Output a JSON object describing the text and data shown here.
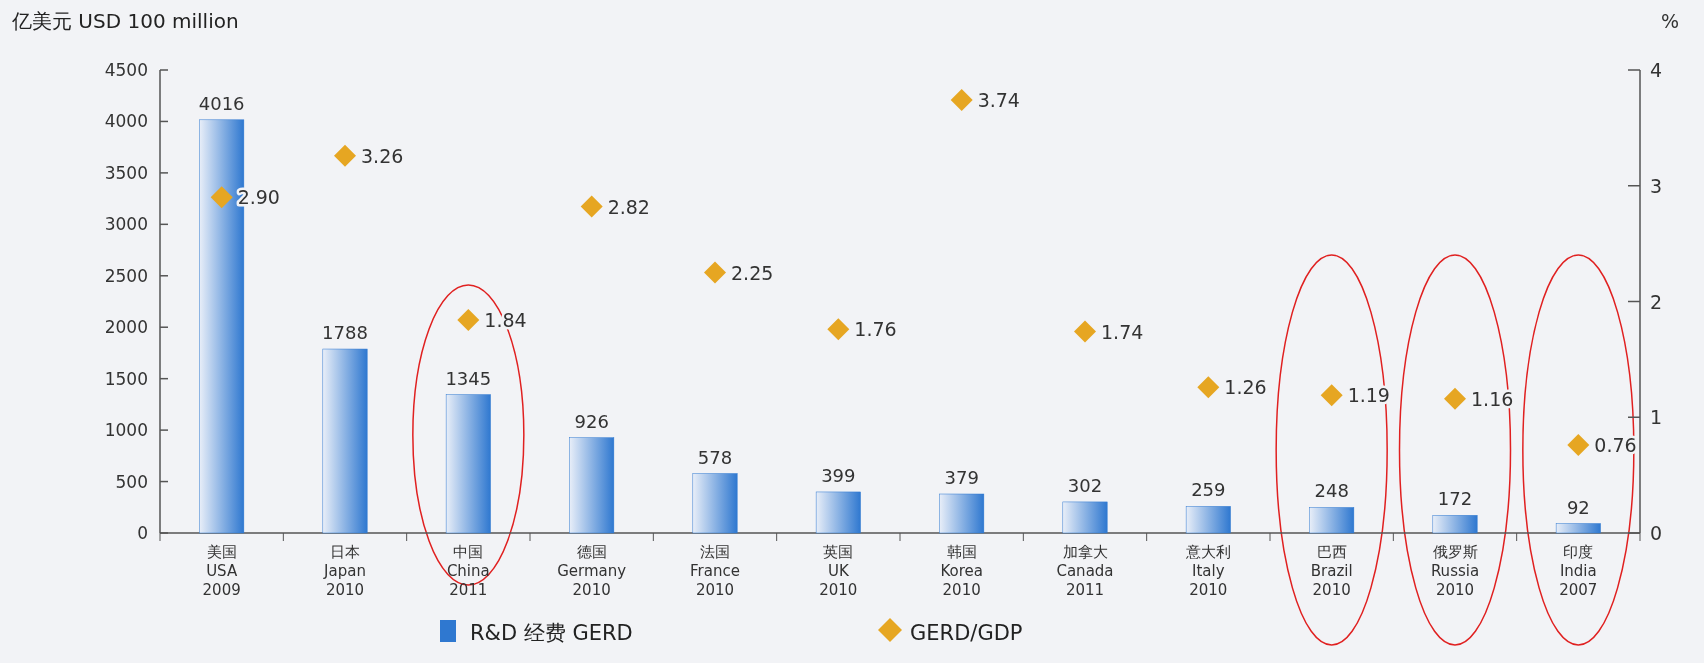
{
  "chart_data": {
    "type": "bar",
    "ylabel": "亿美元 USD 100 million",
    "y2label": "%",
    "categories": [
      "美国\nUSA\n2009",
      "日本\nJapan\n2010",
      "中国\nChina\n2011",
      "德国\nGermany\n2010",
      "法国\nFrance\n2010",
      "英国\nUK\n2010",
      "韩国\nKorea\n2010",
      "加拿大\nCanada\n2011",
      "意大利\nItaly\n2010",
      "巴西\nBrazil\n2010",
      "俄罗斯\nRussia\n2010",
      "印度\nIndia\n2007"
    ],
    "series": [
      {
        "name": "R&D 经费 GERD",
        "color": "#2f78d0",
        "values": [
          4016,
          1788,
          1345,
          926,
          578,
          399,
          379,
          302,
          259,
          248,
          172,
          92
        ],
        "data_labels": true
      },
      {
        "name": "GERD/GDP",
        "type": "scatter",
        "axis": "y2",
        "marker": "diamond",
        "color": "#e6a622",
        "values": [
          2.9,
          3.26,
          1.84,
          2.82,
          2.25,
          1.76,
          3.74,
          1.74,
          1.26,
          1.19,
          1.16,
          0.76
        ],
        "value_labels": [
          "2.90",
          "3.26",
          "1.84",
          "2.82",
          "2.25",
          "1.76",
          "3.74",
          "1.74",
          "1.26",
          "1.19",
          "1.16",
          "0.76"
        ]
      }
    ],
    "ylim": [
      0,
      4500
    ],
    "yticks": [
      0,
      500,
      1000,
      1500,
      2000,
      2500,
      3000,
      3500,
      4000,
      4500
    ],
    "y2lim": [
      0,
      4
    ],
    "y2ticks": [
      0,
      1,
      2,
      3,
      4
    ],
    "grid": false,
    "legend": "bottom"
  }
}
